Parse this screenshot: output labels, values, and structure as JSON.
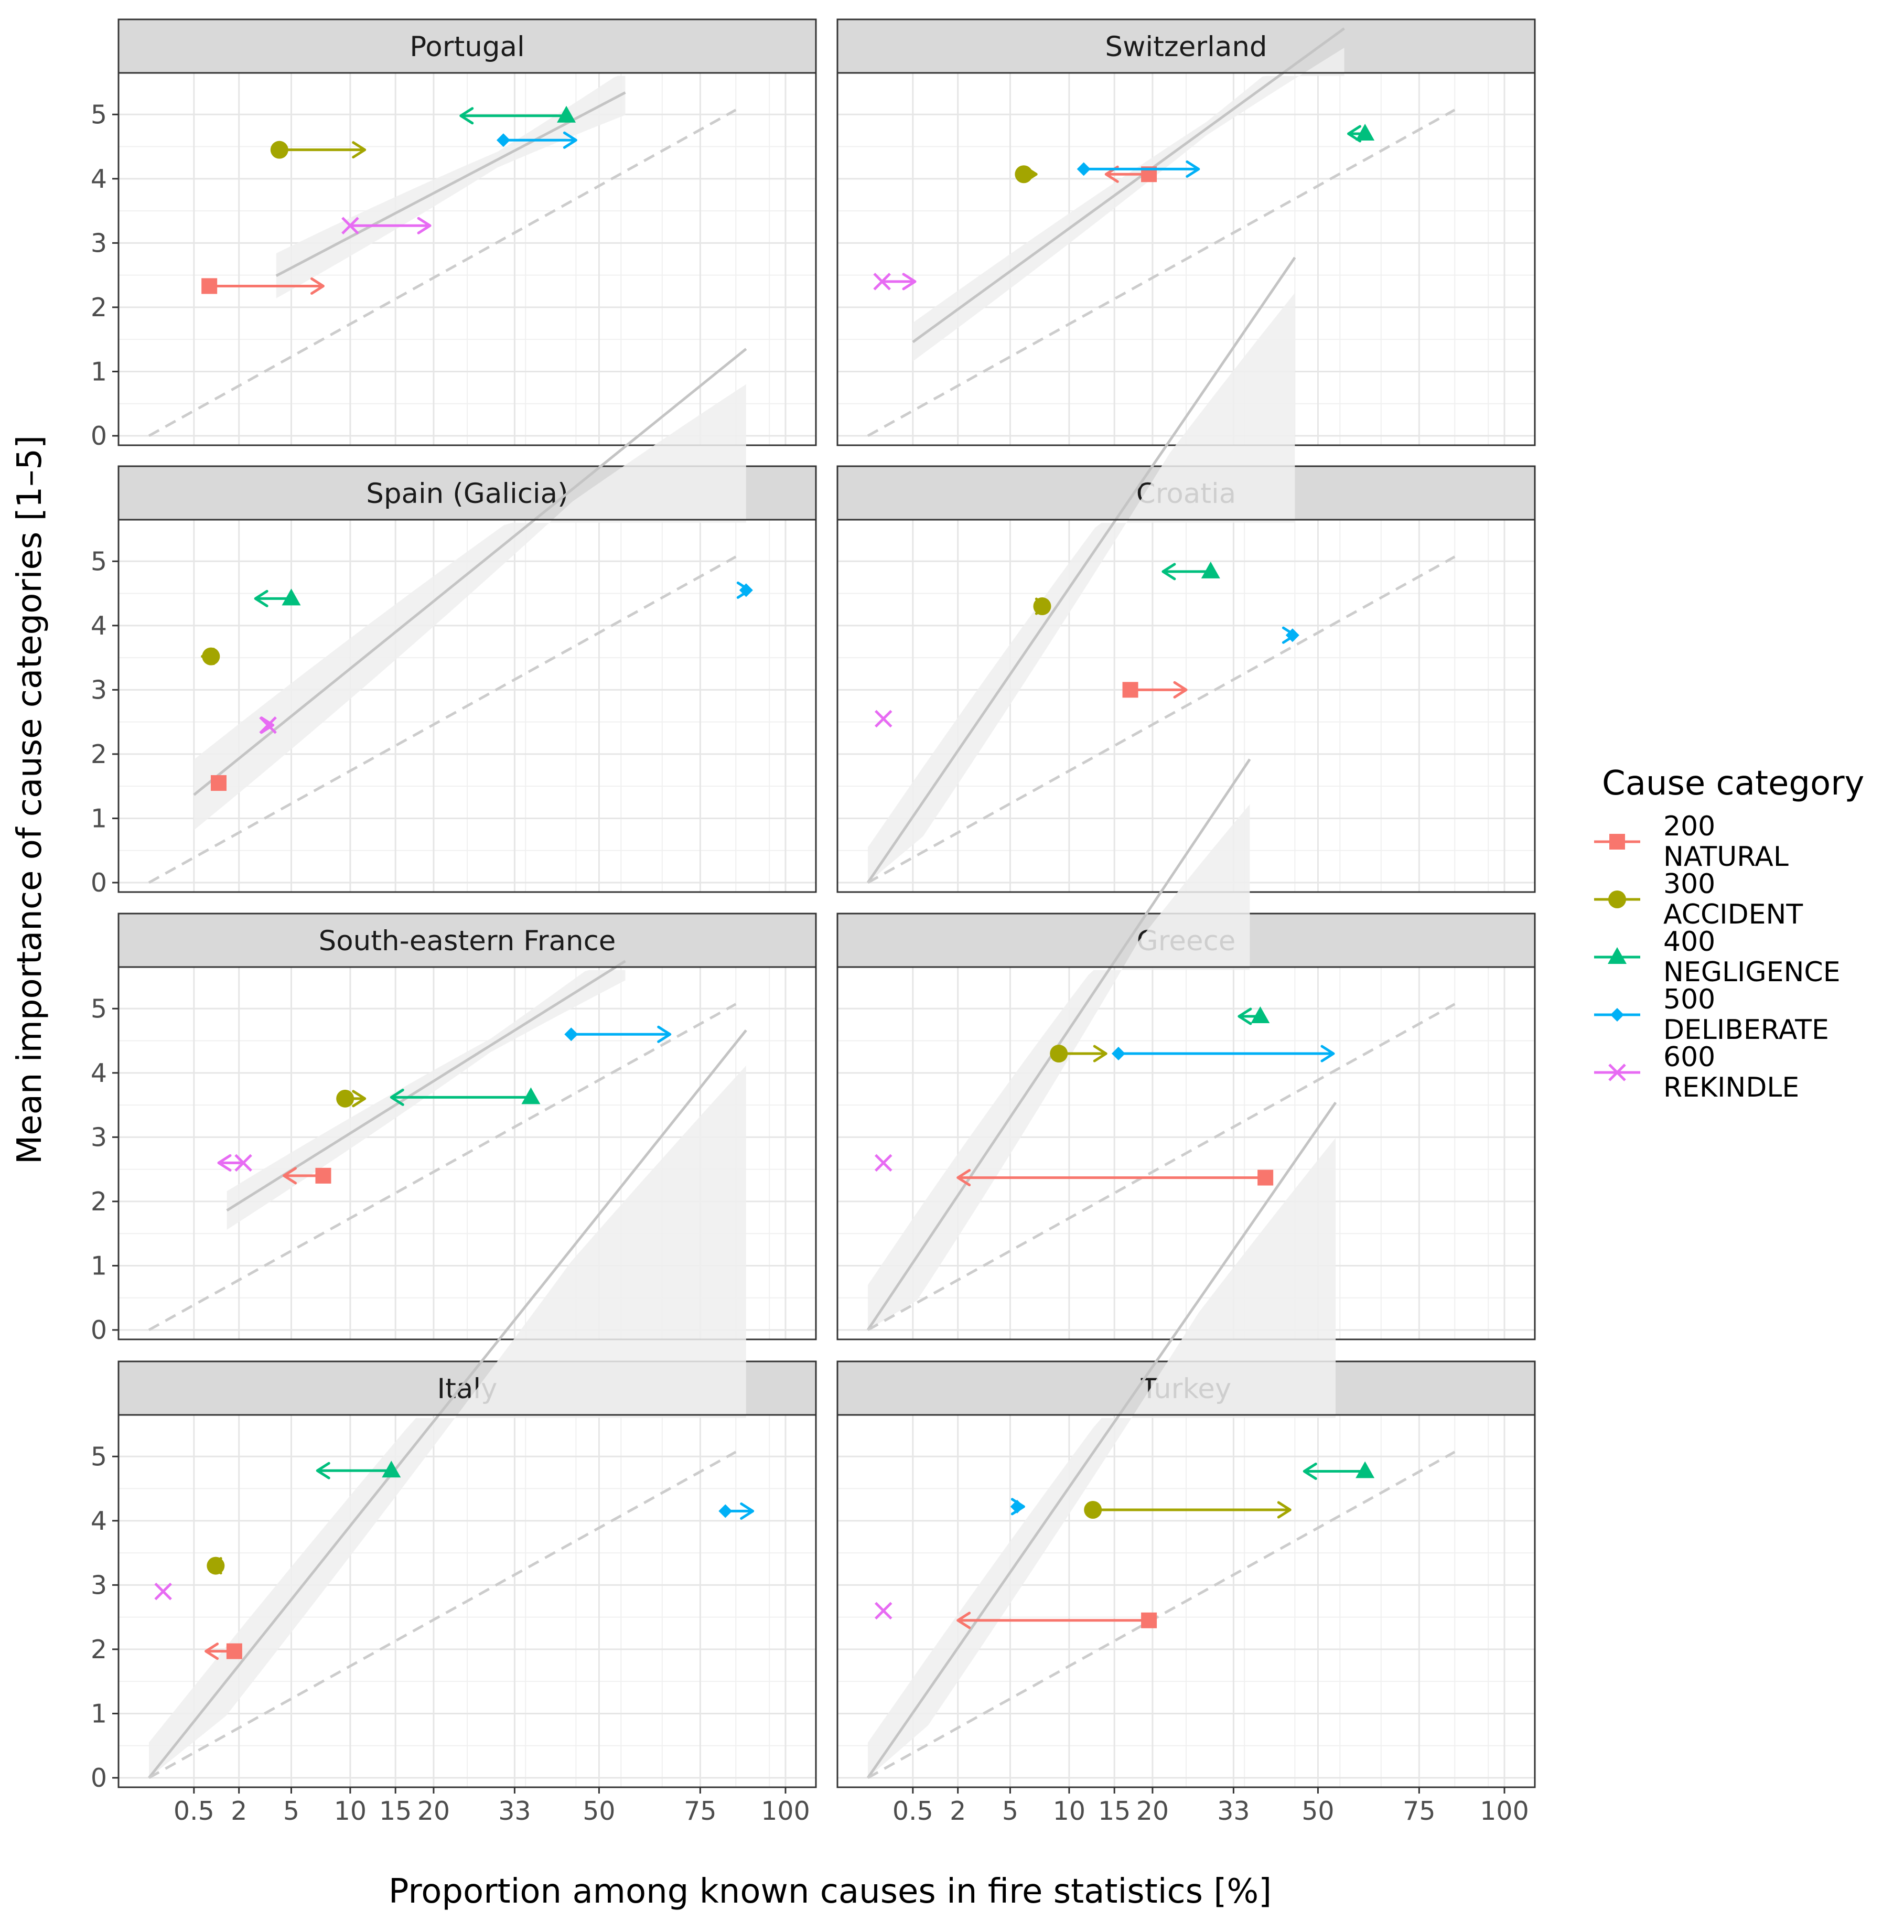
{
  "chart_data": {
    "type": "scatter",
    "xlabel": "Proportion among known causes in fire statistics [%]",
    "ylabel": "Mean importance of cause categories [1–5]",
    "x_scale": "sqrt",
    "xlim": [
      0,
      100
    ],
    "ylim": [
      0,
      5.5
    ],
    "x_ticks": [
      0.5,
      2,
      5,
      10,
      15,
      20,
      33,
      50,
      75,
      100
    ],
    "x_tick_labels": [
      "0.5",
      "2",
      "5",
      "10",
      "15",
      "20",
      "33",
      "50",
      "75",
      "100"
    ],
    "y_ticks": [
      0,
      1,
      2,
      3,
      4,
      5
    ],
    "grid": true,
    "legend": {
      "title": "Cause category",
      "placement": "right",
      "entries": [
        {
          "code": "200",
          "name": "NATURAL",
          "color": "#F8766D",
          "shape": "square"
        },
        {
          "code": "300",
          "name": "ACCIDENT",
          "color": "#A3A500",
          "shape": "circle"
        },
        {
          "code": "400",
          "name": "NEGLIGENCE",
          "color": "#00BF7D",
          "shape": "triangle"
        },
        {
          "code": "500",
          "name": "DELIBERATE",
          "color": "#00B0F6",
          "shape": "diamond"
        },
        {
          "code": "600",
          "name": "REKINDLE",
          "color": "#E76BF3",
          "shape": "cross"
        }
      ]
    },
    "reference_curve": {
      "style": "dashed",
      "color": "#c8c8c8",
      "formula": "y = 5.5 * sqrt(x/100)"
    },
    "panels": [
      {
        "name": "Portugal",
        "fit": {
          "x_range": [
            4,
            56
          ],
          "a": 1.45,
          "b": 0.52,
          "band": 0.35
        },
        "points": [
          {
            "cat": "200",
            "x": 0.9,
            "x_to": 7.5,
            "y": 2.33
          },
          {
            "cat": "300",
            "x": 4.2,
            "x_to": 11.5,
            "y": 4.45
          },
          {
            "cat": "400",
            "x": 43,
            "x_to": 24,
            "y": 4.98
          },
          {
            "cat": "500",
            "x": 31,
            "x_to": 45,
            "y": 4.6
          },
          {
            "cat": "600",
            "x": 10,
            "x_to": 19.5,
            "y": 3.27
          }
        ]
      },
      {
        "name": "Switzerland",
        "fit": {
          "x_range": [
            0.5,
            56
          ],
          "a": 0.95,
          "b": 0.72,
          "band": 0.3
        },
        "points": [
          {
            "cat": "200",
            "x": 19.5,
            "x_to": 14,
            "y": 4.07
          },
          {
            "cat": "300",
            "x": 6,
            "x_to": 7,
            "y": 4.07
          },
          {
            "cat": "400",
            "x": 61,
            "x_to": 57,
            "y": 4.7
          },
          {
            "cat": "500",
            "x": 11.5,
            "x_to": 27,
            "y": 4.15
          },
          {
            "cat": "600",
            "x": 0.05,
            "x_to": 0.55,
            "y": 2.4
          }
        ]
      },
      {
        "name": "Spain (Galicia)",
        "fit": {
          "x_range": [
            0.5,
            88
          ],
          "a": 0.8,
          "b": 0.8,
          "band": 0.55
        },
        "points": [
          {
            "cat": "200",
            "x": 1.2,
            "x_to": 1.2,
            "y": 1.55
          },
          {
            "cat": "300",
            "x": 0.95,
            "x_to": 0.7,
            "y": 3.52
          },
          {
            "cat": "400",
            "x": 5,
            "x_to": 2.8,
            "y": 4.42
          },
          {
            "cat": "500",
            "x": 88,
            "x_to": 89,
            "y": 4.55
          },
          {
            "cat": "600",
            "x": 3.5,
            "x_to": 3.8,
            "y": 2.45
          }
        ]
      },
      {
        "name": "Croatia",
        "fit": {
          "x_range": [
            0,
            45
          ],
          "a": 0,
          "b": 1.45,
          "band": 0.55
        },
        "points": [
          {
            "cat": "200",
            "x": 17,
            "x_to": 25,
            "y": 3.0
          },
          {
            "cat": "300",
            "x": 7.5,
            "x_to": 8,
            "y": 4.3
          },
          {
            "cat": "400",
            "x": 29,
            "x_to": 21.5,
            "y": 4.84
          },
          {
            "cat": "500",
            "x": 44.5,
            "x_to": 45,
            "y": 3.85
          },
          {
            "cat": "600",
            "x": 0.06,
            "x_to": 0.06,
            "y": 2.55
          }
        ]
      },
      {
        "name": "South-eastern France",
        "fit": {
          "x_range": [
            1.5,
            56
          ],
          "a": 1.1,
          "b": 0.62,
          "band": 0.3
        },
        "points": [
          {
            "cat": "200",
            "x": 7.5,
            "x_to": 4.5,
            "y": 2.4
          },
          {
            "cat": "300",
            "x": 9.5,
            "x_to": 11.5,
            "y": 3.6
          },
          {
            "cat": "400",
            "x": 36,
            "x_to": 14.5,
            "y": 3.62
          },
          {
            "cat": "500",
            "x": 44,
            "x_to": 67,
            "y": 4.6
          },
          {
            "cat": "600",
            "x": 2.2,
            "x_to": 1.2,
            "y": 2.6
          }
        ]
      },
      {
        "name": "Greece",
        "fit": {
          "x_range": [
            0,
            36
          ],
          "a": 0,
          "b": 1.48,
          "band": 0.7
        },
        "points": [
          {
            "cat": "200",
            "x": 39,
            "x_to": 2,
            "y": 2.37
          },
          {
            "cat": "300",
            "x": 9,
            "x_to": 14,
            "y": 4.3
          },
          {
            "cat": "400",
            "x": 38,
            "x_to": 34,
            "y": 4.88
          },
          {
            "cat": "500",
            "x": 15.5,
            "x_to": 53.5,
            "y": 4.3
          },
          {
            "cat": "600",
            "x": 0.06,
            "x_to": 0.06,
            "y": 2.6
          }
        ]
      },
      {
        "name": "Italy",
        "fit": {
          "x_range": [
            0,
            88
          ],
          "a": 0,
          "b": 1.24,
          "band": 0.55
        },
        "points": [
          {
            "cat": "200",
            "x": 1.8,
            "x_to": 0.8,
            "y": 1.97
          },
          {
            "cat": "300",
            "x": 1.1,
            "x_to": 0.9,
            "y": 3.3
          },
          {
            "cat": "400",
            "x": 14.5,
            "x_to": 7,
            "y": 4.78
          },
          {
            "cat": "500",
            "x": 82,
            "x_to": 90,
            "y": 4.15
          },
          {
            "cat": "600",
            "x": 0.05,
            "x_to": 0.05,
            "y": 2.9
          }
        ]
      },
      {
        "name": "Turkey",
        "fit": {
          "x_range": [
            0,
            54
          ],
          "a": 0,
          "b": 1.43,
          "band": 0.55
        },
        "points": [
          {
            "cat": "200",
            "x": 19.5,
            "x_to": 2,
            "y": 2.45
          },
          {
            "cat": "300",
            "x": 12.5,
            "x_to": 44,
            "y": 4.17
          },
          {
            "cat": "400",
            "x": 61,
            "x_to": 47,
            "y": 4.77
          },
          {
            "cat": "500",
            "x": 5.5,
            "x_to": 6,
            "y": 4.22
          },
          {
            "cat": "600",
            "x": 0.06,
            "x_to": 0.06,
            "y": 2.6
          }
        ]
      }
    ]
  }
}
